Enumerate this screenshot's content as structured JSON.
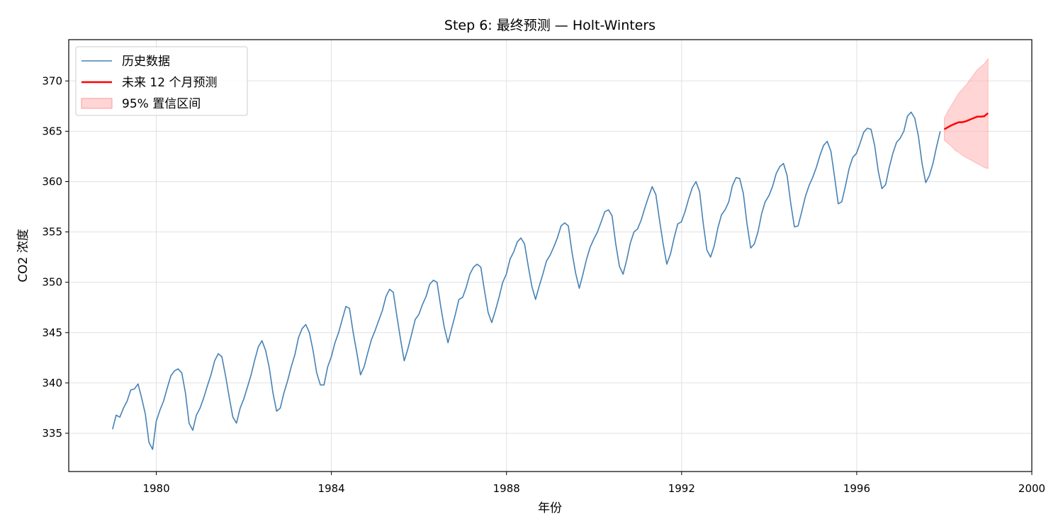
{
  "chart_data": {
    "type": "line",
    "title": "Step 6: 最终预测 — Holt-Winters",
    "xlabel": "年份",
    "ylabel": "CO2 浓度",
    "xlim": [
      1978,
      2000
    ],
    "ylim": [
      331.2,
      374.1
    ],
    "x_ticks": [
      1980,
      1984,
      1988,
      1992,
      1996,
      2000
    ],
    "x_tick_labels": [
      "1980",
      "1984",
      "1988",
      "1992",
      "1996",
      "2000"
    ],
    "y_ticks": [
      335,
      340,
      345,
      350,
      355,
      360,
      365,
      370
    ],
    "y_tick_labels": [
      "335",
      "340",
      "345",
      "350",
      "355",
      "360",
      "365",
      "370"
    ],
    "grid": true,
    "legend_position": "upper-left",
    "colors": {
      "history": "#4682b4",
      "forecast": "#ff0000",
      "ci_fill": "#ffb3b3",
      "ci_edge": "#ff9999"
    },
    "series": [
      {
        "name": "历史数据",
        "style": "line",
        "x_start": 1979.0,
        "x_step": 0.0833,
        "values": [
          335.4,
          336.8,
          336.6,
          337.5,
          338.2,
          339.3,
          339.4,
          339.9,
          338.5,
          336.9,
          334.1,
          333.4,
          336.2,
          337.3,
          338.2,
          339.5,
          340.7,
          341.2,
          341.4,
          341.0,
          339.0,
          336.0,
          335.3,
          336.8,
          337.5,
          338.5,
          339.7,
          340.8,
          342.2,
          342.9,
          342.6,
          340.7,
          338.6,
          336.6,
          336.0,
          337.5,
          338.4,
          339.6,
          340.8,
          342.3,
          343.6,
          344.2,
          343.2,
          341.5,
          339.0,
          337.2,
          337.5,
          339.0,
          340.2,
          341.6,
          342.8,
          344.5,
          345.4,
          345.8,
          345.0,
          343.2,
          341.0,
          339.8,
          339.8,
          341.6,
          342.6,
          344.0,
          345.0,
          346.3,
          347.6,
          347.4,
          345.0,
          343.0,
          340.8,
          341.6,
          343.0,
          344.3,
          345.2,
          346.2,
          347.2,
          348.6,
          349.3,
          349.0,
          346.6,
          344.3,
          342.2,
          343.4,
          344.8,
          346.3,
          346.8,
          347.8,
          348.6,
          349.8,
          350.2,
          350.0,
          347.6,
          345.5,
          344.0,
          345.4,
          346.8,
          348.3,
          348.5,
          349.5,
          350.8,
          351.5,
          351.8,
          351.5,
          349.2,
          347.0,
          346.0,
          347.2,
          348.5,
          350.0,
          350.8,
          352.3,
          353.0,
          354.0,
          354.4,
          353.8,
          351.6,
          349.6,
          348.3,
          349.6,
          350.8,
          352.1,
          352.7,
          353.5,
          354.4,
          355.6,
          355.9,
          355.6,
          353.0,
          350.9,
          349.4,
          350.8,
          352.3,
          353.5,
          354.3,
          355.0,
          356.0,
          357.0,
          357.2,
          356.6,
          353.8,
          351.6,
          350.8,
          352.2,
          353.9,
          355.0,
          355.3,
          356.2,
          357.4,
          358.5,
          359.5,
          358.7,
          356.2,
          353.8,
          351.8,
          352.8,
          354.4,
          355.8,
          356.0,
          357.0,
          358.3,
          359.4,
          360.0,
          359.0,
          355.8,
          353.2,
          352.5,
          353.6,
          355.4,
          356.7,
          357.2,
          358.0,
          359.6,
          360.4,
          360.3,
          358.8,
          355.8,
          353.4,
          353.8,
          355.0,
          356.8,
          358.0,
          358.6,
          359.5,
          360.8,
          361.5,
          361.8,
          360.6,
          357.8,
          355.5,
          355.6,
          357.0,
          358.5,
          359.6,
          360.4,
          361.4,
          362.6,
          363.6,
          364.0,
          363.0,
          360.5,
          357.8,
          358.0,
          359.6,
          361.3,
          362.4,
          362.8,
          363.8,
          364.9,
          365.3,
          365.2,
          363.6,
          361.0,
          359.3,
          359.7,
          361.4,
          362.8,
          363.9,
          364.3,
          365.0,
          366.5,
          366.9,
          366.3,
          364.5,
          361.8,
          359.9,
          360.6,
          361.8,
          363.5,
          365.0
        ]
      },
      {
        "name": "未来 12 个月预测",
        "style": "line",
        "x": [
          1998.0,
          1998.083,
          1998.167,
          1998.25,
          1998.333,
          1998.417,
          1998.5,
          1998.583,
          1998.667,
          1998.75,
          1998.833,
          1998.917,
          1999.0
        ],
        "values": [
          365.2,
          365.4,
          365.6,
          365.75,
          365.9,
          365.9,
          366.0,
          366.15,
          366.3,
          366.45,
          366.45,
          366.5,
          366.8
        ]
      },
      {
        "name": "95% 置信区间",
        "style": "band",
        "x": [
          1998.0,
          1998.083,
          1998.167,
          1998.25,
          1998.333,
          1998.417,
          1998.5,
          1998.583,
          1998.667,
          1998.75,
          1998.833,
          1998.917,
          1999.0
        ],
        "lower": [
          364.1,
          363.8,
          363.5,
          363.1,
          362.9,
          362.6,
          362.4,
          362.2,
          362.0,
          361.8,
          361.6,
          361.4,
          361.3
        ],
        "upper": [
          366.3,
          367.0,
          367.6,
          368.2,
          368.8,
          369.2,
          369.6,
          370.1,
          370.6,
          371.1,
          371.4,
          371.7,
          372.2
        ]
      }
    ]
  }
}
